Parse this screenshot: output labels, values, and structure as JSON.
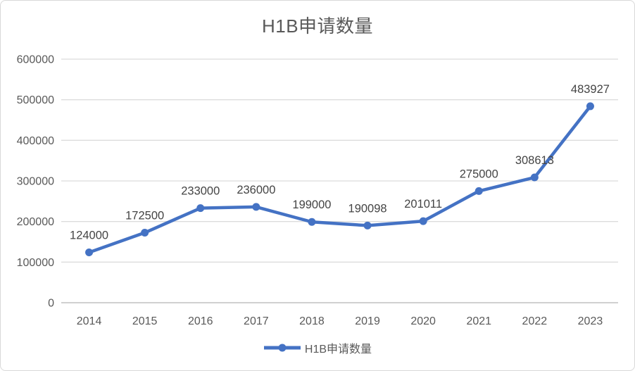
{
  "chart_data": {
    "type": "line",
    "title": "H1B申请数量",
    "categories": [
      "2014",
      "2015",
      "2016",
      "2017",
      "2018",
      "2019",
      "2020",
      "2021",
      "2022",
      "2023"
    ],
    "series": [
      {
        "name": "H1B申请数量",
        "values": [
          124000,
          172500,
          233000,
          236000,
          199000,
          190098,
          201011,
          275000,
          308613,
          483927
        ]
      }
    ],
    "data_labels": [
      124000,
      172500,
      233000,
      236000,
      199000,
      190098,
      201011,
      275000,
      308613,
      483927
    ],
    "xlabel": "",
    "ylabel": "",
    "ylim": [
      0,
      600000
    ],
    "ytick_step": 100000,
    "yticks": [
      0,
      100000,
      200000,
      300000,
      400000,
      500000,
      600000
    ],
    "grid": true,
    "legend_position": "bottom",
    "colors": {
      "line": "#4472C4",
      "marker": "#4472C4",
      "grid": "#dcdcdc",
      "axis_line": "#c9c9c9",
      "axis_text": "#595959",
      "data_label_text": "#444444",
      "title_text": "#595959",
      "legend_text": "#595959"
    }
  }
}
